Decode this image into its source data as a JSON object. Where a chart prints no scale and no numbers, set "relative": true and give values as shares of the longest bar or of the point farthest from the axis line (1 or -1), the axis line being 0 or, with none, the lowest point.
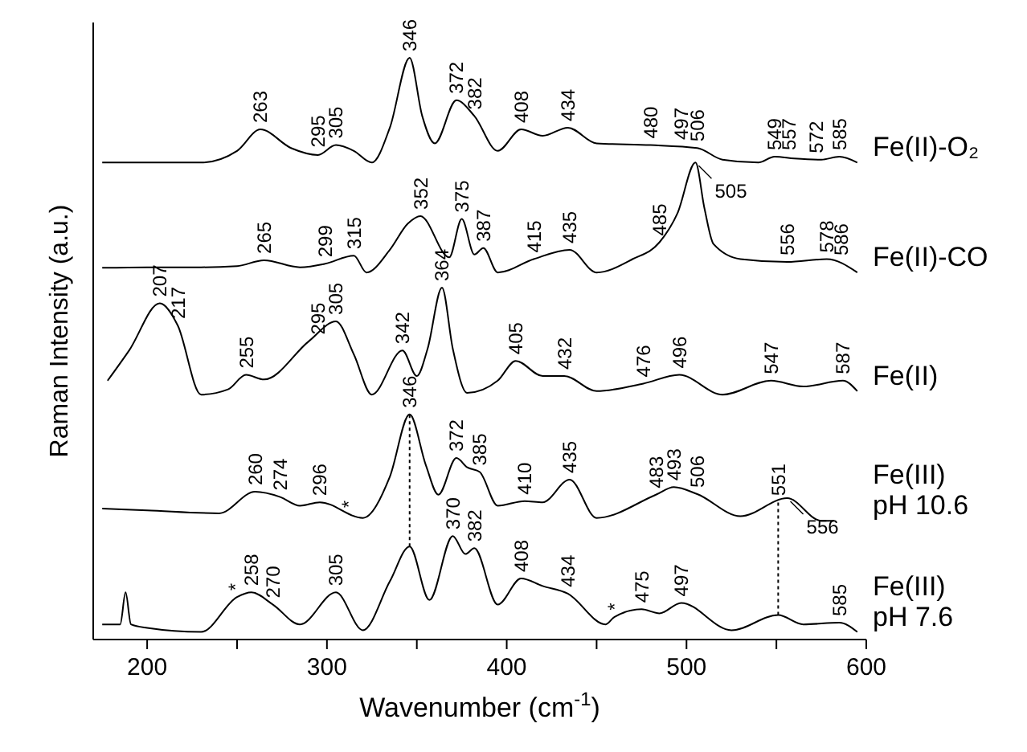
{
  "chart_data": {
    "type": "line",
    "relative": true,
    "xlabel": "Wavenumber (cm$^{-1}$)",
    "ylabel": "Raman Intensity (a.u.)",
    "xlim": [
      170,
      600
    ],
    "xticks": [
      200,
      {
        "value": 250,
        "label": null
      },
      300,
      {
        "value": 350,
        "label": null
      },
      400,
      {
        "value": 450,
        "label": null
      },
      500,
      {
        "value": 550,
        "label": null
      },
      600
    ],
    "line_style": "solid",
    "marker": "none",
    "grid": false,
    "legend": "right",
    "series": [
      {
        "name": "Fe(II)-O₂",
        "color": "#000000",
        "x": [
          175,
          200,
          230,
          250,
          263,
          280,
          295,
          305,
          315,
          325,
          335,
          346,
          353,
          360,
          372,
          382,
          395,
          408,
          420,
          434,
          450,
          480,
          506,
          520,
          540,
          549,
          560,
          575,
          585,
          595
        ],
        "values": [
          0.82,
          0.82,
          0.82,
          0.84,
          0.877,
          0.845,
          0.833,
          0.85,
          0.84,
          0.82,
          0.88,
          1.0,
          0.9,
          0.853,
          0.927,
          0.9,
          0.84,
          0.877,
          0.866,
          0.88,
          0.853,
          0.85,
          0.845,
          0.825,
          0.82,
          0.83,
          0.827,
          0.825,
          0.83,
          0.82
        ]
      },
      {
        "name": "Fe(II)-CO",
        "color": "#000000",
        "x": [
          175,
          200,
          230,
          250,
          265,
          285,
          299,
          315,
          322,
          335,
          345,
          352,
          368,
          375,
          382,
          387,
          395,
          415,
          435,
          450,
          470,
          485,
          495,
          505,
          510,
          515,
          530,
          556,
          578,
          595
        ],
        "values": [
          0.639,
          0.64,
          0.64,
          0.642,
          0.652,
          0.64,
          0.646,
          0.66,
          0.631,
          0.67,
          0.715,
          0.728,
          0.657,
          0.723,
          0.662,
          0.673,
          0.631,
          0.654,
          0.67,
          0.631,
          0.654,
          0.683,
          0.733,
          0.82,
          0.741,
          0.68,
          0.654,
          0.649,
          0.654,
          0.631
        ]
      },
      {
        "name": "Fe(II)",
        "color": "#000000",
        "x": [
          178,
          190,
          207,
          217,
          230,
          245,
          255,
          265,
          290,
          305,
          315,
          325,
          342,
          350,
          356,
          364,
          370,
          378,
          395,
          405,
          420,
          432,
          450,
          476,
          496,
          520,
          547,
          565,
          587,
          595
        ],
        "values": [
          0.445,
          0.497,
          0.578,
          0.54,
          0.421,
          0.43,
          0.455,
          0.447,
          0.513,
          0.547,
          0.49,
          0.421,
          0.497,
          0.453,
          0.5,
          0.605,
          0.5,
          0.424,
          0.445,
          0.479,
          0.453,
          0.453,
          0.427,
          0.44,
          0.455,
          0.421,
          0.445,
          0.435,
          0.445,
          0.427
        ]
      },
      {
        "name": "Fe(III)\npH 10.6",
        "color": "#000000",
        "x": [
          175,
          200,
          240,
          260,
          274,
          285,
          296,
          320,
          335,
          346,
          355,
          362,
          372,
          378,
          385,
          395,
          410,
          420,
          435,
          450,
          483,
          493,
          506,
          530,
          556,
          575,
          582
        ],
        "values": [
          0.225,
          0.222,
          0.217,
          0.254,
          0.245,
          0.23,
          0.236,
          0.209,
          0.28,
          0.387,
          0.3,
          0.249,
          0.312,
          0.296,
          0.288,
          0.23,
          0.238,
          0.236,
          0.275,
          0.209,
          0.249,
          0.262,
          0.25,
          0.212,
          0.243,
          0.204,
          0.204
        ]
      },
      {
        "name": "Fe(III)\npH 7.6",
        "color": "#000000",
        "x": [
          175,
          185,
          188,
          191,
          200,
          230,
          250,
          258,
          270,
          285,
          305,
          320,
          335,
          346,
          357,
          370,
          377,
          382,
          395,
          408,
          420,
          434,
          455,
          460,
          475,
          485,
          497,
          525,
          551,
          565,
          585,
          595
        ],
        "values": [
          0.026,
          0.026,
          0.081,
          0.026,
          0.02,
          0.013,
          0.073,
          0.081,
          0.06,
          0.026,
          0.081,
          0.016,
          0.1,
          0.16,
          0.068,
          0.178,
          0.147,
          0.157,
          0.06,
          0.105,
          0.092,
          0.079,
          0.026,
          0.039,
          0.052,
          0.045,
          0.063,
          0.016,
          0.042,
          0.026,
          0.029,
          0.013
        ]
      }
    ],
    "ref_lines": [
      {
        "axis": "x",
        "value": 346,
        "line_style": "dotted",
        "color": "#000000"
      },
      {
        "axis": "x",
        "value": 551,
        "line_style": "dotted",
        "color": "#000000"
      }
    ],
    "annotations": [
      {
        "text": "263",
        "x": 263,
        "y": 0.877
      },
      {
        "text": "295",
        "x": 295,
        "y": 0.835
      },
      {
        "text": "305",
        "x": 305,
        "y": 0.85
      },
      {
        "text": "346",
        "x": 346,
        "y": 1.0
      },
      {
        "text": "372",
        "x": 372,
        "y": 0.927
      },
      {
        "text": "382",
        "x": 382,
        "y": 0.9
      },
      {
        "text": "408",
        "x": 408,
        "y": 0.877
      },
      {
        "text": "434",
        "x": 434,
        "y": 0.88
      },
      {
        "text": "480",
        "x": 480,
        "y": 0.85
      },
      {
        "text": "497",
        "x": 497,
        "y": 0.848
      },
      {
        "text": "506",
        "x": 506,
        "y": 0.845
      },
      {
        "text": "549",
        "x": 549,
        "y": 0.83
      },
      {
        "text": "557",
        "x": 557,
        "y": 0.83
      },
      {
        "text": "572",
        "x": 572,
        "y": 0.825
      },
      {
        "text": "585",
        "x": 585,
        "y": 0.83
      },
      {
        "text": "265",
        "x": 265,
        "y": 0.652
      },
      {
        "text": "299",
        "x": 299,
        "y": 0.646
      },
      {
        "text": "315",
        "x": 315,
        "y": 0.66
      },
      {
        "text": "352",
        "x": 352,
        "y": 0.728
      },
      {
        "text": "375",
        "x": 375,
        "y": 0.723
      },
      {
        "text": "387",
        "x": 387,
        "y": 0.673
      },
      {
        "text": "415",
        "x": 415,
        "y": 0.654
      },
      {
        "text": "435",
        "x": 435,
        "y": 0.67
      },
      {
        "text": "485",
        "x": 485,
        "y": 0.683
      },
      {
        "text": "505",
        "x": 505,
        "y": 0.82
      },
      {
        "text": "556",
        "x": 556,
        "y": 0.649
      },
      {
        "text": "578",
        "x": 578,
        "y": 0.654
      },
      {
        "text": "586",
        "x": 586,
        "y": 0.649
      },
      {
        "text": "207",
        "x": 207,
        "y": 0.578
      },
      {
        "text": "217",
        "x": 217,
        "y": 0.54
      },
      {
        "text": "255",
        "x": 255,
        "y": 0.455
      },
      {
        "text": "295",
        "x": 295,
        "y": 0.513
      },
      {
        "text": "305",
        "x": 305,
        "y": 0.547
      },
      {
        "text": "342",
        "x": 342,
        "y": 0.497
      },
      {
        "text": "364",
        "x": 364,
        "y": 0.605
      },
      {
        "text": "405",
        "x": 405,
        "y": 0.479
      },
      {
        "text": "432",
        "x": 432,
        "y": 0.453
      },
      {
        "text": "476",
        "x": 476,
        "y": 0.44
      },
      {
        "text": "496",
        "x": 496,
        "y": 0.455
      },
      {
        "text": "547",
        "x": 547,
        "y": 0.445
      },
      {
        "text": "587",
        "x": 587,
        "y": 0.445
      },
      {
        "text": "260",
        "x": 260,
        "y": 0.254
      },
      {
        "text": "274",
        "x": 274,
        "y": 0.245
      },
      {
        "text": "296",
        "x": 296,
        "y": 0.236
      },
      {
        "text": "*",
        "x": 312,
        "y": 0.215
      },
      {
        "text": "346",
        "x": 346,
        "y": 0.387
      },
      {
        "text": "372",
        "x": 372,
        "y": 0.312
      },
      {
        "text": "385",
        "x": 385,
        "y": 0.288
      },
      {
        "text": "410",
        "x": 410,
        "y": 0.238
      },
      {
        "text": "435",
        "x": 435,
        "y": 0.275
      },
      {
        "text": "483",
        "x": 483,
        "y": 0.249
      },
      {
        "text": "493",
        "x": 493,
        "y": 0.262
      },
      {
        "text": "506",
        "x": 506,
        "y": 0.25
      },
      {
        "text": "551",
        "x": 551,
        "y": 0.236
      },
      {
        "text": "556",
        "x": 556,
        "y": 0.243
      },
      {
        "text": "*",
        "x": 249,
        "y": 0.073
      },
      {
        "text": "258",
        "x": 258,
        "y": 0.081
      },
      {
        "text": "270",
        "x": 270,
        "y": 0.06
      },
      {
        "text": "305",
        "x": 305,
        "y": 0.081
      },
      {
        "text": "370",
        "x": 370,
        "y": 0.178
      },
      {
        "text": "382",
        "x": 382,
        "y": 0.157
      },
      {
        "text": "408",
        "x": 408,
        "y": 0.105
      },
      {
        "text": "434",
        "x": 434,
        "y": 0.079
      },
      {
        "text": "*",
        "x": 460,
        "y": 0.039
      },
      {
        "text": "475",
        "x": 475,
        "y": 0.052
      },
      {
        "text": "497",
        "x": 497,
        "y": 0.063
      },
      {
        "text": "585",
        "x": 585,
        "y": 0.029
      }
    ]
  }
}
